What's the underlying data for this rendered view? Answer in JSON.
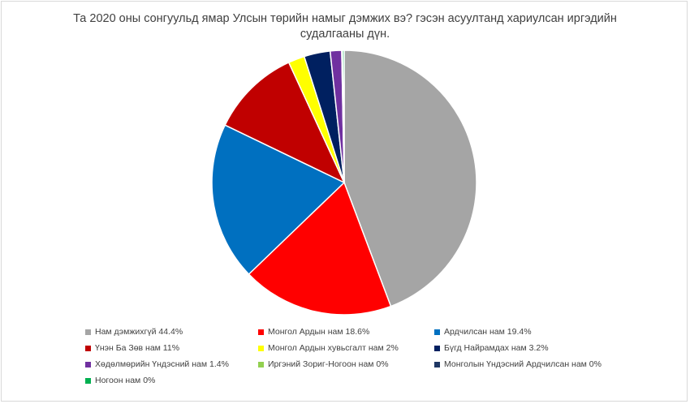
{
  "chart_data": {
    "type": "pie",
    "title_line1": "Та 2020 оны сонгуульд ямар Улсын төрийн намыг дэмжих вэ? гэсэн асуултанд хариулсан иргэдийн",
    "title_line2": "судалгааны дүн.",
    "legend_position": "bottom",
    "slices": [
      {
        "label": "Нам дэмжихгүй 44.4%",
        "value": 44.4,
        "color": "#a5a5a5"
      },
      {
        "label": "Монгол Ардын нам 18.6%",
        "value": 18.6,
        "color": "#ff0000"
      },
      {
        "label": "Ардчилсан нам 19.4%",
        "value": 19.4,
        "color": "#0070c0"
      },
      {
        "label": "Үнэн Ба Зөв нам 11%",
        "value": 11,
        "color": "#c00000"
      },
      {
        "label": "Монгол Ардын хувьсгалт нам 2%",
        "value": 2,
        "color": "#ffff00"
      },
      {
        "label": "Бүгд Найрамдах нам 3.2%",
        "value": 3.2,
        "color": "#002060"
      },
      {
        "label": "Хөдөлмөрийн Үндэсний нам 1.4%",
        "value": 1.4,
        "color": "#7030a0"
      },
      {
        "label": "Иргэний Зориг-Ногоон нам 0%",
        "value": 0.1,
        "color": "#92d050"
      },
      {
        "label": "Монголын Үндэсний Ардчилсан нам 0%",
        "value": 0,
        "color": "#1f3864"
      },
      {
        "label": "Ногоон нам 0%",
        "value": 0.2,
        "color": "#00b050"
      }
    ]
  }
}
